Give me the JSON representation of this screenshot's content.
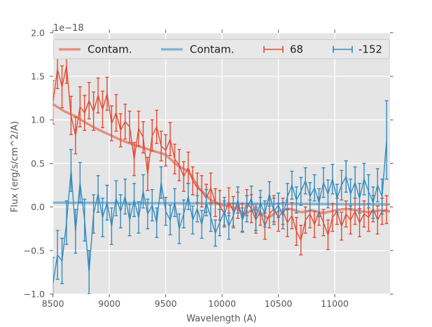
{
  "chart_data": {
    "type": "line",
    "style": "ggplot",
    "offset_text": "1e−18",
    "xlabel": "Wavelength (A)",
    "ylabel": "Flux (erg/s/cm^2/A)",
    "xlim": [
      8500,
      11490
    ],
    "ylim": [
      -1.0,
      2.0
    ],
    "xticks": [
      8500,
      9000,
      9500,
      10000,
      10500,
      11000
    ],
    "yticks": [
      -1.0,
      -0.5,
      0.0,
      0.5,
      1.0,
      1.5,
      2.0
    ],
    "grid": true,
    "colors": {
      "figure_bg": "#FFFFFF",
      "plot_bg": "#E5E5E5",
      "grid": "#FFFFFF",
      "tick_text": "#555555",
      "legend_bg": "#E8E8E8",
      "legend_border": "#CBCBCB",
      "red": "#E24A33",
      "blue": "#348ABD"
    },
    "legend": {
      "position": "upper center",
      "entries": [
        {
          "label": "Contam.",
          "color": "#E24A33",
          "alpha": 0.55,
          "glyph": "line"
        },
        {
          "label": "Contam.",
          "color": "#348ABD",
          "alpha": 0.55,
          "glyph": "line"
        },
        {
          "label": "68",
          "color": "#E24A33",
          "alpha": 1,
          "glyph": "errorbar"
        },
        {
          "label": "-152",
          "color": "#348ABD",
          "alpha": 1,
          "glyph": "errorbar"
        }
      ]
    },
    "series": [
      {
        "name": "contam-red",
        "legend_label": "Contam.",
        "type": "line",
        "color": "#E24A33",
        "alpha": 0.55,
        "width": 3.5,
        "x": [
          8500,
          8600,
          8700,
          8800,
          8900,
          9000,
          9100,
          9200,
          9300,
          9400,
          9500,
          9600,
          9700,
          9800,
          9900,
          10000,
          10100,
          10200,
          10300,
          10400,
          10500,
          10600,
          10700,
          10800,
          10900,
          11000,
          11100,
          11200,
          11300,
          11400,
          11490
        ],
        "y": [
          1.18,
          1.1,
          1.04,
          0.96,
          0.89,
          0.83,
          0.77,
          0.72,
          0.68,
          0.64,
          0.6,
          0.48,
          0.41,
          0.21,
          0.08,
          0.02,
          0.0,
          -0.08,
          -0.02,
          -0.13,
          -0.05,
          -0.02,
          -0.06,
          -0.04,
          -0.07,
          -0.04,
          -0.02,
          -0.04,
          -0.06,
          -0.04,
          -0.05
        ]
      },
      {
        "name": "contam-blue",
        "legend_label": "Contam.",
        "type": "line",
        "color": "#348ABD",
        "alpha": 0.55,
        "width": 3.5,
        "x": [
          8500,
          9200,
          10000,
          10800,
          11490
        ],
        "y": [
          0.05,
          0.045,
          0.04,
          0.035,
          0.03
        ]
      },
      {
        "name": "68",
        "legend_label": "68",
        "type": "errorbar",
        "color": "#E24A33",
        "alpha": 1,
        "width": 1.4,
        "x": [
          8500,
          8540,
          8580,
          8620,
          8660,
          8700,
          8740,
          8780,
          8820,
          8860,
          8900,
          8940,
          8980,
          9020,
          9060,
          9100,
          9140,
          9180,
          9220,
          9260,
          9300,
          9340,
          9380,
          9420,
          9460,
          9500,
          9540,
          9580,
          9620,
          9660,
          9700,
          9740,
          9780,
          9820,
          9860,
          9900,
          9940,
          9980,
          10020,
          10060,
          10100,
          10140,
          10180,
          10220,
          10260,
          10300,
          10340,
          10380,
          10420,
          10460,
          10500,
          10540,
          10580,
          10620,
          10660,
          10700,
          10740,
          10780,
          10820,
          10860,
          10900,
          10940,
          10980,
          11020,
          11060,
          11100,
          11140,
          11180,
          11220,
          11260,
          11300,
          11340,
          11380,
          11420,
          11460
        ],
        "y": [
          1.2,
          1.58,
          1.38,
          1.62,
          1.05,
          0.82,
          1.15,
          1.08,
          1.22,
          1.1,
          1.28,
          1.12,
          1.3,
          0.96,
          1.08,
          0.88,
          0.98,
          0.92,
          0.55,
          0.9,
          0.8,
          0.38,
          0.82,
          0.92,
          0.7,
          0.65,
          0.78,
          0.55,
          0.48,
          0.35,
          0.45,
          0.3,
          0.22,
          0.18,
          0.1,
          0.22,
          0.05,
          0.02,
          -0.08,
          0.06,
          -0.05,
          0.02,
          -0.12,
          0.05,
          -0.02,
          -0.15,
          -0.05,
          -0.22,
          -0.08,
          -0.02,
          -0.12,
          -0.05,
          -0.18,
          -0.1,
          -0.28,
          -0.38,
          -0.15,
          -0.08,
          -0.2,
          -0.05,
          -0.18,
          -0.32,
          -0.12,
          -0.05,
          -0.22,
          -0.08,
          -0.15,
          -0.05,
          -0.18,
          -0.08,
          -0.12,
          -0.02,
          -0.15,
          -0.05,
          -0.03
        ],
        "yerr": [
          0.25,
          0.22,
          0.24,
          0.2,
          0.22,
          0.21,
          0.23,
          0.2,
          0.21,
          0.22,
          0.2,
          0.21,
          0.19,
          0.2,
          0.21,
          0.19,
          0.2,
          0.18,
          0.19,
          0.2,
          0.18,
          0.19,
          0.18,
          0.19,
          0.17,
          0.18,
          0.19,
          0.17,
          0.18,
          0.17,
          0.18,
          0.16,
          0.17,
          0.18,
          0.16,
          0.17,
          0.16,
          0.17,
          0.15,
          0.16,
          0.17,
          0.15,
          0.16,
          0.15,
          0.16,
          0.15,
          0.16,
          0.15,
          0.16,
          0.15,
          0.16,
          0.15,
          0.16,
          0.15,
          0.16,
          0.17,
          0.15,
          0.16,
          0.15,
          0.16,
          0.15,
          0.17,
          0.16,
          0.15,
          0.16,
          0.15,
          0.16,
          0.15,
          0.16,
          0.15,
          0.16,
          0.15,
          0.16,
          0.15,
          0.16
        ]
      },
      {
        "name": "-152",
        "legend_label": "-152",
        "type": "errorbar",
        "color": "#348ABD",
        "alpha": 1,
        "width": 1.4,
        "x": [
          8500,
          8540,
          8580,
          8620,
          8660,
          8700,
          8740,
          8780,
          8820,
          8860,
          8900,
          8940,
          8980,
          9020,
          9060,
          9100,
          9140,
          9180,
          9220,
          9260,
          9300,
          9340,
          9380,
          9420,
          9460,
          9500,
          9540,
          9580,
          9620,
          9660,
          9700,
          9740,
          9780,
          9820,
          9860,
          9900,
          9940,
          9980,
          10020,
          10060,
          10100,
          10140,
          10180,
          10220,
          10260,
          10300,
          10340,
          10380,
          10420,
          10460,
          10500,
          10540,
          10580,
          10620,
          10660,
          10700,
          10740,
          10780,
          10820,
          10860,
          10900,
          10940,
          10980,
          11020,
          11060,
          11100,
          11140,
          11180,
          11220,
          11260,
          11300,
          11340,
          11380,
          11420,
          11460
        ],
        "y": [
          -0.88,
          -0.55,
          -0.62,
          -0.18,
          0.42,
          -0.28,
          0.28,
          -0.15,
          -0.75,
          -0.08,
          0.15,
          -0.12,
          0.05,
          -0.22,
          0.1,
          -0.05,
          0.12,
          -0.15,
          0.08,
          -0.12,
          0.18,
          -0.08,
          0.02,
          -0.18,
          0.28,
          -0.05,
          -0.15,
          0.05,
          -0.25,
          -0.08,
          0.12,
          -0.15,
          -0.02,
          -0.2,
          0.05,
          -0.12,
          -0.3,
          -0.18,
          -0.05,
          -0.22,
          -0.1,
          0.08,
          -0.15,
          -0.02,
          0.1,
          -0.12,
          0.05,
          -0.08,
          0.15,
          -0.05,
          0.02,
          -0.1,
          0.12,
          0.25,
          0.08,
          0.18,
          0.3,
          0.12,
          0.22,
          0.05,
          0.28,
          0.15,
          0.32,
          0.1,
          0.25,
          0.35,
          0.15,
          0.28,
          0.1,
          0.32,
          0.18,
          0.05,
          0.25,
          0.12,
          0.77
        ],
        "yerr": [
          0.3,
          0.28,
          0.26,
          0.25,
          0.24,
          0.25,
          0.23,
          0.24,
          0.25,
          0.22,
          0.21,
          0.22,
          0.2,
          0.21,
          0.2,
          0.19,
          0.2,
          0.18,
          0.19,
          0.18,
          0.19,
          0.17,
          0.18,
          0.17,
          0.18,
          0.16,
          0.17,
          0.16,
          0.17,
          0.16,
          0.15,
          0.16,
          0.15,
          0.16,
          0.15,
          0.16,
          0.15,
          0.15,
          0.16,
          0.15,
          0.14,
          0.15,
          0.14,
          0.15,
          0.14,
          0.15,
          0.14,
          0.15,
          0.14,
          0.15,
          0.14,
          0.15,
          0.15,
          0.16,
          0.15,
          0.16,
          0.15,
          0.16,
          0.15,
          0.16,
          0.17,
          0.16,
          0.17,
          0.16,
          0.17,
          0.18,
          0.17,
          0.18,
          0.17,
          0.18,
          0.19,
          0.18,
          0.19,
          0.2,
          0.45
        ]
      }
    ]
  }
}
